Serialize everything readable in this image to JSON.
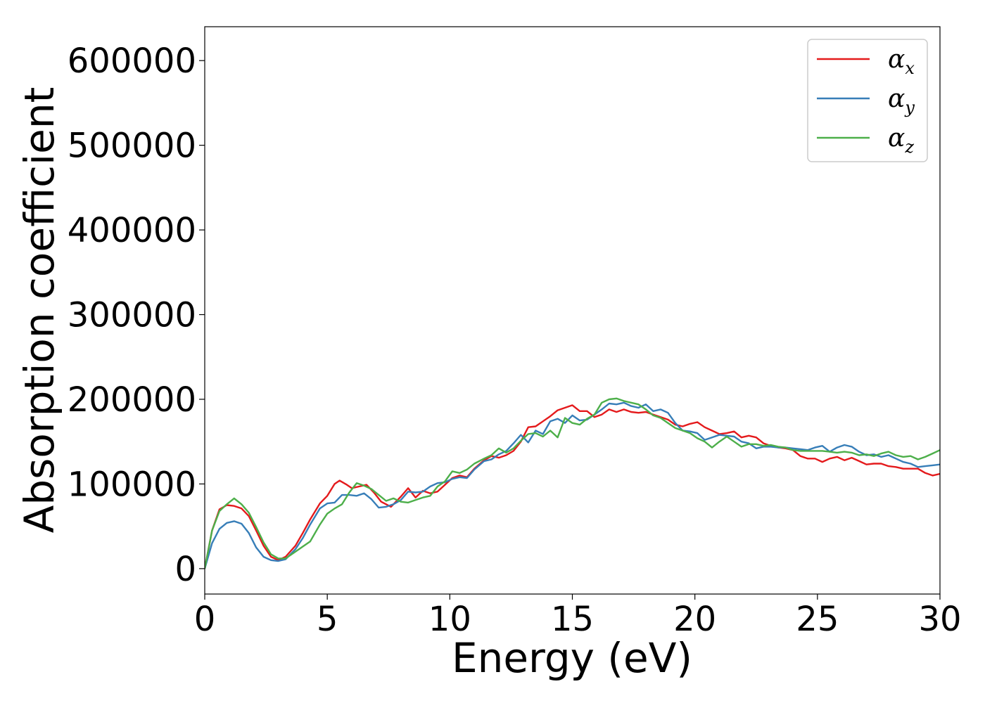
{
  "chart_data": {
    "type": "line",
    "title": "",
    "xlabel": "Energy (eV)",
    "ylabel": "Absorption coefficient",
    "xlim": [
      0,
      30
    ],
    "ylim": [
      -30000,
      640000
    ],
    "xticks": [
      0,
      5,
      10,
      15,
      20,
      25,
      30
    ],
    "yticks": [
      0,
      100000,
      200000,
      300000,
      400000,
      500000,
      600000
    ],
    "grid": false,
    "legend_position": "top-right",
    "series": [
      {
        "name": "α",
        "sub": "x",
        "color": "#e41a1c",
        "points": [
          [
            0,
            0
          ],
          [
            0.3,
            45000
          ],
          [
            0.6,
            70000
          ],
          [
            0.9,
            75000
          ],
          [
            1.2,
            74000
          ],
          [
            1.5,
            71000
          ],
          [
            1.8,
            62000
          ],
          [
            2.1,
            45000
          ],
          [
            2.4,
            27000
          ],
          [
            2.7,
            14000
          ],
          [
            3.0,
            10000
          ],
          [
            3.3,
            14000
          ],
          [
            3.7,
            27000
          ],
          [
            4.0,
            42000
          ],
          [
            4.3,
            58000
          ],
          [
            4.7,
            77000
          ],
          [
            5.0,
            86000
          ],
          [
            5.3,
            100000
          ],
          [
            5.5,
            104000
          ],
          [
            5.8,
            99000
          ],
          [
            6.0,
            95000
          ],
          [
            6.3,
            97000
          ],
          [
            6.6,
            99000
          ],
          [
            6.9,
            90000
          ],
          [
            7.2,
            79000
          ],
          [
            7.6,
            73000
          ],
          [
            8.0,
            85000
          ],
          [
            8.3,
            95000
          ],
          [
            8.6,
            84000
          ],
          [
            8.9,
            92000
          ],
          [
            9.2,
            89000
          ],
          [
            9.5,
            91000
          ],
          [
            9.8,
            99000
          ],
          [
            10.1,
            107000
          ],
          [
            10.4,
            110000
          ],
          [
            10.7,
            108000
          ],
          [
            11.0,
            118000
          ],
          [
            11.4,
            128000
          ],
          [
            11.7,
            133000
          ],
          [
            12.0,
            131000
          ],
          [
            12.3,
            134000
          ],
          [
            12.6,
            139000
          ],
          [
            12.9,
            150000
          ],
          [
            13.2,
            167000
          ],
          [
            13.5,
            168000
          ],
          [
            13.8,
            174000
          ],
          [
            14.1,
            180000
          ],
          [
            14.4,
            187000
          ],
          [
            14.7,
            190000
          ],
          [
            15.0,
            193000
          ],
          [
            15.3,
            186000
          ],
          [
            15.6,
            186000
          ],
          [
            15.9,
            179000
          ],
          [
            16.2,
            182000
          ],
          [
            16.5,
            188000
          ],
          [
            16.8,
            185000
          ],
          [
            17.1,
            188000
          ],
          [
            17.4,
            185000
          ],
          [
            17.7,
            184000
          ],
          [
            18.0,
            185000
          ],
          [
            18.3,
            182000
          ],
          [
            18.6,
            179000
          ],
          [
            18.9,
            176000
          ],
          [
            19.2,
            170000
          ],
          [
            19.5,
            168000
          ],
          [
            19.8,
            171000
          ],
          [
            20.1,
            173000
          ],
          [
            20.4,
            167000
          ],
          [
            20.7,
            163000
          ],
          [
            21.0,
            159000
          ],
          [
            21.3,
            160000
          ],
          [
            21.6,
            162000
          ],
          [
            21.9,
            155000
          ],
          [
            22.2,
            157000
          ],
          [
            22.5,
            155000
          ],
          [
            22.8,
            148000
          ],
          [
            23.1,
            145000
          ],
          [
            23.4,
            143000
          ],
          [
            23.7,
            142000
          ],
          [
            24.0,
            140000
          ],
          [
            24.3,
            133000
          ],
          [
            24.6,
            130000
          ],
          [
            24.9,
            130000
          ],
          [
            25.2,
            126000
          ],
          [
            25.5,
            130000
          ],
          [
            25.8,
            132000
          ],
          [
            26.1,
            128000
          ],
          [
            26.4,
            131000
          ],
          [
            26.7,
            127000
          ],
          [
            27.0,
            123000
          ],
          [
            27.3,
            124000
          ],
          [
            27.6,
            124000
          ],
          [
            27.9,
            121000
          ],
          [
            28.2,
            120000
          ],
          [
            28.5,
            118000
          ],
          [
            28.8,
            118000
          ],
          [
            29.1,
            118000
          ],
          [
            29.4,
            113000
          ],
          [
            29.7,
            110000
          ],
          [
            30.0,
            112000
          ]
        ]
      },
      {
        "name": "α",
        "sub": "y",
        "color": "#377eb8",
        "points": [
          [
            0,
            0
          ],
          [
            0.3,
            30000
          ],
          [
            0.6,
            47000
          ],
          [
            0.9,
            54000
          ],
          [
            1.2,
            56000
          ],
          [
            1.5,
            53000
          ],
          [
            1.8,
            42000
          ],
          [
            2.1,
            25000
          ],
          [
            2.4,
            14000
          ],
          [
            2.7,
            10000
          ],
          [
            3.0,
            9000
          ],
          [
            3.3,
            11000
          ],
          [
            3.7,
            23000
          ],
          [
            4.0,
            36000
          ],
          [
            4.3,
            52000
          ],
          [
            4.7,
            71000
          ],
          [
            5.0,
            77000
          ],
          [
            5.3,
            78000
          ],
          [
            5.6,
            87000
          ],
          [
            5.9,
            87000
          ],
          [
            6.2,
            86000
          ],
          [
            6.5,
            89000
          ],
          [
            6.8,
            82000
          ],
          [
            7.1,
            72000
          ],
          [
            7.4,
            73000
          ],
          [
            7.7,
            76000
          ],
          [
            8.0,
            81000
          ],
          [
            8.3,
            91000
          ],
          [
            8.6,
            90000
          ],
          [
            8.9,
            91000
          ],
          [
            9.2,
            97000
          ],
          [
            9.5,
            101000
          ],
          [
            9.8,
            102000
          ],
          [
            10.1,
            106000
          ],
          [
            10.4,
            108000
          ],
          [
            10.7,
            107000
          ],
          [
            11.0,
            117000
          ],
          [
            11.4,
            127000
          ],
          [
            11.7,
            129000
          ],
          [
            12.0,
            135000
          ],
          [
            12.3,
            139000
          ],
          [
            12.6,
            148000
          ],
          [
            12.9,
            158000
          ],
          [
            13.2,
            149000
          ],
          [
            13.5,
            163000
          ],
          [
            13.8,
            159000
          ],
          [
            14.1,
            174000
          ],
          [
            14.4,
            177000
          ],
          [
            14.7,
            172000
          ],
          [
            15.0,
            181000
          ],
          [
            15.3,
            175000
          ],
          [
            15.6,
            176000
          ],
          [
            15.9,
            182000
          ],
          [
            16.2,
            188000
          ],
          [
            16.5,
            195000
          ],
          [
            16.8,
            194000
          ],
          [
            17.1,
            196000
          ],
          [
            17.4,
            192000
          ],
          [
            17.7,
            190000
          ],
          [
            18.0,
            194000
          ],
          [
            18.3,
            186000
          ],
          [
            18.6,
            188000
          ],
          [
            18.9,
            184000
          ],
          [
            19.2,
            172000
          ],
          [
            19.5,
            163000
          ],
          [
            19.8,
            162000
          ],
          [
            20.1,
            160000
          ],
          [
            20.4,
            152000
          ],
          [
            20.7,
            155000
          ],
          [
            21.0,
            158000
          ],
          [
            21.3,
            157000
          ],
          [
            21.6,
            156000
          ],
          [
            21.9,
            150000
          ],
          [
            22.2,
            148000
          ],
          [
            22.5,
            142000
          ],
          [
            22.8,
            144000
          ],
          [
            23.1,
            144000
          ],
          [
            23.4,
            143000
          ],
          [
            23.7,
            143000
          ],
          [
            24.0,
            142000
          ],
          [
            24.3,
            141000
          ],
          [
            24.6,
            140000
          ],
          [
            24.9,
            143000
          ],
          [
            25.2,
            145000
          ],
          [
            25.5,
            138000
          ],
          [
            25.8,
            143000
          ],
          [
            26.1,
            146000
          ],
          [
            26.4,
            144000
          ],
          [
            26.7,
            138000
          ],
          [
            27.0,
            134000
          ],
          [
            27.3,
            135000
          ],
          [
            27.6,
            132000
          ],
          [
            27.9,
            134000
          ],
          [
            28.2,
            130000
          ],
          [
            28.5,
            126000
          ],
          [
            28.8,
            124000
          ],
          [
            29.1,
            120000
          ],
          [
            29.4,
            121000
          ],
          [
            29.7,
            122000
          ],
          [
            30.0,
            123000
          ]
        ]
      },
      {
        "name": "α",
        "sub": "z",
        "color": "#4daf4a",
        "points": [
          [
            0,
            0
          ],
          [
            0.3,
            45000
          ],
          [
            0.6,
            68000
          ],
          [
            0.9,
            76000
          ],
          [
            1.2,
            83000
          ],
          [
            1.5,
            76000
          ],
          [
            1.8,
            66000
          ],
          [
            2.1,
            49000
          ],
          [
            2.4,
            31000
          ],
          [
            2.7,
            17000
          ],
          [
            3.0,
            12000
          ],
          [
            3.3,
            12000
          ],
          [
            3.7,
            20000
          ],
          [
            4.0,
            26000
          ],
          [
            4.3,
            32000
          ],
          [
            4.7,
            52000
          ],
          [
            5.0,
            65000
          ],
          [
            5.3,
            71000
          ],
          [
            5.6,
            76000
          ],
          [
            5.9,
            90000
          ],
          [
            6.2,
            101000
          ],
          [
            6.5,
            98000
          ],
          [
            6.8,
            94000
          ],
          [
            7.1,
            87000
          ],
          [
            7.4,
            80000
          ],
          [
            7.7,
            83000
          ],
          [
            8.0,
            79000
          ],
          [
            8.3,
            78000
          ],
          [
            8.6,
            81000
          ],
          [
            8.9,
            84000
          ],
          [
            9.2,
            86000
          ],
          [
            9.5,
            97000
          ],
          [
            9.8,
            103000
          ],
          [
            10.1,
            115000
          ],
          [
            10.4,
            113000
          ],
          [
            10.7,
            117000
          ],
          [
            11.0,
            124000
          ],
          [
            11.4,
            130000
          ],
          [
            11.7,
            134000
          ],
          [
            12.0,
            142000
          ],
          [
            12.3,
            137000
          ],
          [
            12.6,
            142000
          ],
          [
            12.9,
            151000
          ],
          [
            13.2,
            159000
          ],
          [
            13.5,
            160000
          ],
          [
            13.8,
            156000
          ],
          [
            14.1,
            163000
          ],
          [
            14.4,
            155000
          ],
          [
            14.7,
            178000
          ],
          [
            15.0,
            172000
          ],
          [
            15.3,
            170000
          ],
          [
            15.6,
            177000
          ],
          [
            15.9,
            182000
          ],
          [
            16.2,
            196000
          ],
          [
            16.5,
            200000
          ],
          [
            16.8,
            201000
          ],
          [
            17.1,
            198000
          ],
          [
            17.4,
            196000
          ],
          [
            17.7,
            194000
          ],
          [
            18.0,
            188000
          ],
          [
            18.3,
            181000
          ],
          [
            18.6,
            178000
          ],
          [
            18.9,
            172000
          ],
          [
            19.2,
            166000
          ],
          [
            19.5,
            163000
          ],
          [
            19.8,
            160000
          ],
          [
            20.1,
            154000
          ],
          [
            20.4,
            150000
          ],
          [
            20.7,
            143000
          ],
          [
            21.0,
            150000
          ],
          [
            21.3,
            156000
          ],
          [
            21.6,
            150000
          ],
          [
            21.9,
            144000
          ],
          [
            22.2,
            147000
          ],
          [
            22.5,
            147000
          ],
          [
            22.8,
            145000
          ],
          [
            23.1,
            146000
          ],
          [
            23.4,
            144000
          ],
          [
            23.7,
            143000
          ],
          [
            24.0,
            140000
          ],
          [
            24.3,
            139000
          ],
          [
            24.6,
            139000
          ],
          [
            24.9,
            139000
          ],
          [
            25.2,
            139000
          ],
          [
            25.5,
            138000
          ],
          [
            25.8,
            137000
          ],
          [
            26.1,
            138000
          ],
          [
            26.4,
            137000
          ],
          [
            26.7,
            134000
          ],
          [
            27.0,
            135000
          ],
          [
            27.3,
            133000
          ],
          [
            27.6,
            136000
          ],
          [
            27.9,
            138000
          ],
          [
            28.2,
            134000
          ],
          [
            28.5,
            132000
          ],
          [
            28.8,
            133000
          ],
          [
            29.1,
            129000
          ],
          [
            29.4,
            132000
          ],
          [
            29.7,
            136000
          ],
          [
            30.0,
            140000
          ]
        ]
      }
    ]
  }
}
